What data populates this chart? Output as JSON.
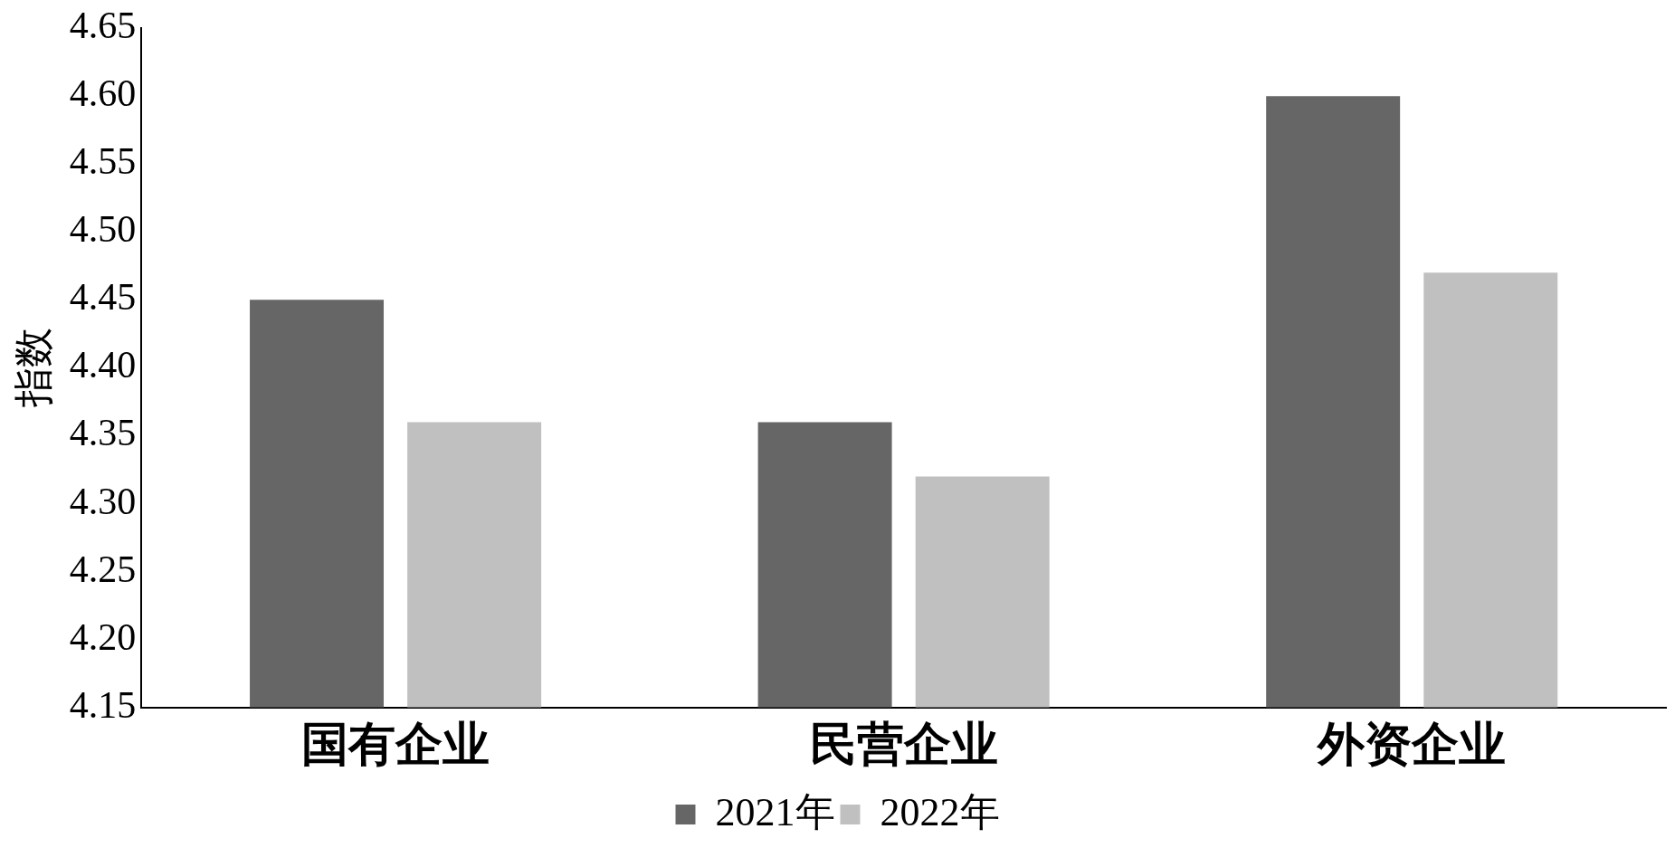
{
  "chart_data": {
    "type": "bar",
    "ylabel": "指数",
    "categories": [
      "国有企业",
      "民营企业",
      "外资企业"
    ],
    "series": [
      {
        "name": "2021年",
        "color": "#666666",
        "values": [
          4.45,
          4.36,
          4.6
        ]
      },
      {
        "name": "2022年",
        "color": "#c0c0c0",
        "values": [
          4.36,
          4.32,
          4.47
        ]
      }
    ],
    "ylim": [
      4.15,
      4.65
    ],
    "yticks": [
      4.15,
      {
        "value": 4.2,
        "label": "4.20"
      },
      4.25,
      {
        "value": 4.3,
        "label": "4.30"
      },
      4.35,
      {
        "value": 4.4,
        "label": "4.40"
      },
      4.45,
      {
        "value": 4.5,
        "label": "4.50"
      },
      4.55,
      {
        "value": 4.6,
        "label": "4.60"
      },
      4.65
    ],
    "grid": false,
    "legend": "bottom"
  }
}
